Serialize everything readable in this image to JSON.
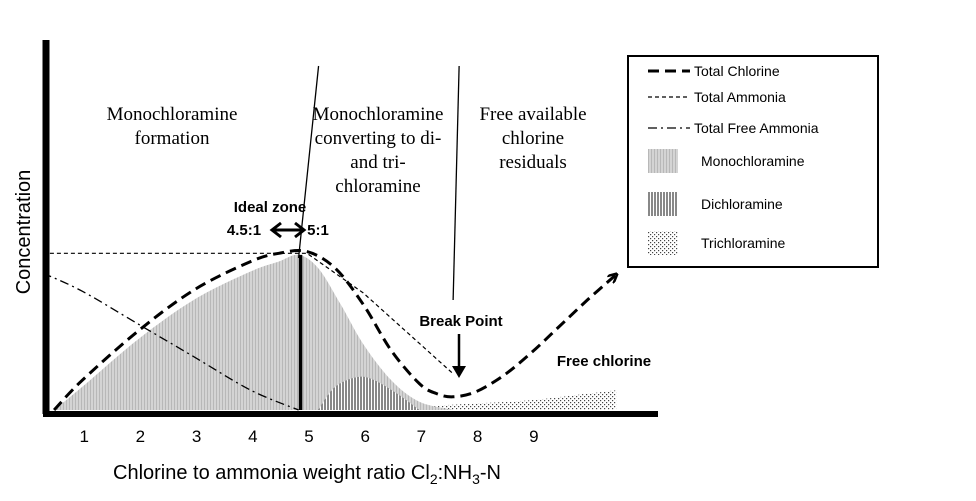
{
  "chart_data": {
    "type": "line",
    "xlabel_main": "Chlorine to ammonia weight ratio Cl",
    "xlabel_sub1": "2",
    "xlabel_mid": ":NH",
    "xlabel_sub2": "3",
    "xlabel_end": "-N",
    "ylabel": "Concentration",
    "x_ticks": [
      "1",
      "2",
      "3",
      "4",
      "5",
      "6",
      "7",
      "8",
      "9"
    ],
    "xlim": [
      0.3,
      10.5
    ],
    "ylim": [
      0,
      100
    ],
    "zones": [
      {
        "lines": [
          "Monochloramine",
          "formation"
        ]
      },
      {
        "lines": [
          "Monochloramine",
          "converting to di-",
          "and tri-",
          "chloramine"
        ]
      },
      {
        "lines": [
          "Free available",
          "chlorine",
          "residuals"
        ]
      }
    ],
    "zone_dividers_x": [
      4.85,
      7.6
    ],
    "annotations": {
      "ideal_zone": "Ideal zone",
      "ratio_left": "4.5:1",
      "ratio_right": "5:1",
      "break_point": "Break Point",
      "free_chlorine": "Free chlorine"
    },
    "ideal_ratio_x": 4.85,
    "break_point_x": 7.6,
    "series": [
      {
        "name": "Total Chlorine",
        "x": [
          0.5,
          1.0,
          2.0,
          3.0,
          4.0,
          4.5,
          5.0,
          5.5,
          6.0,
          6.5,
          7.0,
          7.3,
          7.6,
          8.0,
          8.5,
          9.0,
          9.5,
          10.0,
          10.5
        ],
        "y": [
          0,
          18,
          48,
          73,
          90,
          95,
          96,
          86,
          64,
          36,
          16,
          10,
          8,
          11,
          21,
          35,
          51,
          67,
          82
        ]
      },
      {
        "name": "Total Ammonia",
        "x": [
          0.3,
          5.0,
          6.0,
          7.6
        ],
        "y": [
          95,
          95,
          71,
          22
        ]
      },
      {
        "name": "Total Free Ammonia",
        "x": [
          0.3,
          1.0,
          2.0,
          3.0,
          4.0,
          4.85
        ],
        "y": [
          83,
          72,
          52,
          32,
          12,
          0
        ]
      },
      {
        "name": "Monochloramine",
        "x": [
          0.5,
          1.0,
          2.0,
          3.0,
          4.0,
          4.5,
          4.85,
          5.2,
          5.6,
          6.0,
          6.5,
          7.0,
          7.6
        ],
        "y": [
          0,
          14,
          43,
          67,
          84,
          90,
          94,
          86,
          64,
          40,
          18,
          5,
          0
        ]
      },
      {
        "name": "Dichloramine",
        "x": [
          5.2,
          5.5,
          5.9,
          6.2,
          6.6,
          7.0
        ],
        "y": [
          0,
          14,
          20,
          18,
          10,
          0
        ]
      },
      {
        "name": "Trichloramine",
        "x": [
          6.0,
          7.0,
          8.0,
          9.0,
          10.0,
          10.5
        ],
        "y": [
          0,
          2,
          4,
          6,
          10,
          12
        ]
      }
    ],
    "legend": [
      {
        "name": "Total Chlorine"
      },
      {
        "name": "Total Ammonia"
      },
      {
        "name": "Total Free Ammonia"
      },
      {
        "name": "Monochloramine"
      },
      {
        "name": "Dichloramine"
      },
      {
        "name": "Trichloramine"
      }
    ],
    "legend_placement": "top-right",
    "grid": false,
    "colors": {
      "ink": "#000000",
      "mono_fill": "#cfcfcf",
      "background": "#ffffff"
    }
  }
}
